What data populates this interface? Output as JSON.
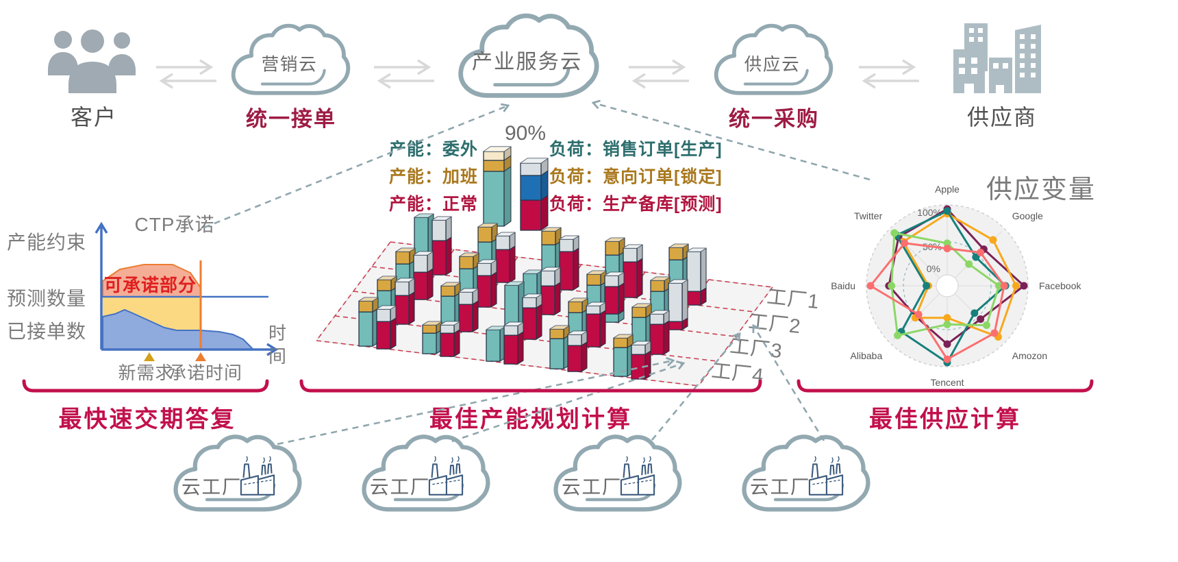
{
  "top_flow": {
    "customer_label": "客户",
    "marketing_cloud": "营销云",
    "marketing_caption": "统一接单",
    "service_cloud": "产业服务云",
    "supply_cloud": "供应云",
    "supply_caption": "统一采购",
    "supplier_label": "供应商"
  },
  "capacity_legend": {
    "percent": "90%",
    "capacity_items": [
      {
        "label": "产能：委外",
        "color": "#2E6E6E"
      },
      {
        "label": "产能：加班",
        "color": "#A9781E"
      },
      {
        "label": "产能：正常",
        "color": "#B01640"
      }
    ],
    "load_items": [
      {
        "label": "负荷：销售订单[生产]",
        "color": "#2E6E6E"
      },
      {
        "label": "负荷：意向订单[锁定]",
        "color": "#A9781E"
      },
      {
        "label": "负荷：生产备库[预测]",
        "color": "#B01640"
      }
    ]
  },
  "ctp_chart": {
    "title": "CTP承诺",
    "y_labels": [
      "产能约束",
      "预测数量",
      "已接单数"
    ],
    "area_label": "可承诺部分",
    "marker_labels": [
      "新需求",
      "承诺时间"
    ],
    "axis_label_chars": [
      "时",
      "间"
    ]
  },
  "factory_grid": {
    "row_labels": [
      "工厂1",
      "工厂2",
      "工厂3",
      "工厂4"
    ],
    "clusters": [
      {
        "cap": [
          80,
          0
        ],
        "load": [
          0,
          50,
          30
        ]
      },
      {
        "cap": [
          55,
          22
        ],
        "load": [
          0,
          48,
          20
        ]
      },
      {
        "cap": [
          62,
          20
        ],
        "load": [
          0,
          56,
          18
        ]
      },
      {
        "cap": [
          58,
          20
        ],
        "load": [
          0,
          52,
          20
        ]
      },
      {
        "cap": [
          62,
          18
        ],
        "load": [
          0,
          20,
          58
        ]
      },
      {
        "cap": [
          48,
          18
        ],
        "load": [
          0,
          40,
          25
        ]
      },
      {
        "cap": [
          52,
          18
        ],
        "load": [
          0,
          46,
          18
        ]
      },
      {
        "cap": [
          56,
          0
        ],
        "load": [
          0,
          42,
          22
        ]
      },
      {
        "cap": [
          50,
          16
        ],
        "load": [
          12,
          40,
          16
        ]
      },
      {
        "cap": [
          52,
          16
        ],
        "load": [
          0,
          12,
          56
        ]
      },
      {
        "cap": [
          45,
          16
        ],
        "load": [
          0,
          42,
          20
        ]
      },
      {
        "cap": [
          48,
          15
        ],
        "load": [
          0,
          40,
          18
        ]
      },
      {
        "cap": [
          75,
          0
        ],
        "load": [
          0,
          46,
          15
        ]
      },
      {
        "cap": [
          46,
          16
        ],
        "load": [
          0,
          48,
          12
        ]
      },
      {
        "cap": [
          50,
          15
        ],
        "load": [
          0,
          44,
          15
        ]
      },
      {
        "cap": [
          50,
          16
        ],
        "load": [
          0,
          40,
          18
        ]
      },
      {
        "cap": [
          30,
          12
        ],
        "load": [
          0,
          34,
          12
        ]
      },
      {
        "cap": [
          46,
          0
        ],
        "load": [
          0,
          42,
          14
        ]
      },
      {
        "cap": [
          44,
          14
        ],
        "load": [
          0,
          38,
          16
        ]
      },
      {
        "cap": [
          42,
          14
        ],
        "load": [
          0,
          36,
          14
        ]
      }
    ]
  },
  "radar": {
    "title": "供应变量",
    "axes": [
      "Apple",
      "Google",
      "Facebook",
      "Amozon",
      "Tencent",
      "Alibaba",
      "Baidu",
      "Twitter"
    ],
    "ring_labels": [
      "100%",
      "50%",
      "0%"
    ],
    "series": [
      {
        "color": "#7B2155",
        "values": [
          1.0,
          0.62,
          1.0,
          0.55,
          0.72,
          0.5,
          0.72,
          0.88
        ]
      },
      {
        "color": "#F7A81B",
        "values": [
          0.93,
          0.82,
          0.88,
          0.93,
          0.32,
          0.52,
          0.12,
          0.78
        ]
      },
      {
        "color": "#17807C",
        "values": [
          0.97,
          0.45,
          0.72,
          0.42,
          1.0,
          0.82,
          0.15,
          0.92
        ]
      },
      {
        "color": "#8BD766",
        "values": [
          0.48,
          0.3,
          0.62,
          0.68,
          0.42,
          0.9,
          0.68,
          0.97
        ]
      },
      {
        "color": "#FB6F6F",
        "values": [
          0.4,
          0.55,
          0.7,
          0.85,
          0.95,
          0.45,
          1.0,
          0.75
        ]
      }
    ]
  },
  "sections": [
    {
      "label": "最快速交期答复"
    },
    {
      "label": "最佳产能规划计算"
    },
    {
      "label": "最佳供应计算"
    }
  ],
  "cloud_factory_label": "云工厂",
  "colors": {
    "bar_teal": "#73BCB8",
    "bar_gold": "#D9A741",
    "bar_cream": "#F6E8C8",
    "bar_silver": "#D9DFE2",
    "bar_crimson": "#C00B45",
    "bar_blue": "#1F6FB5",
    "bar_outline": "#25364A",
    "grid_red": "#C94053",
    "plane_fill": "#F4F4F4",
    "dash_steel": "#8FA6AE",
    "section_red": "#C2104C",
    "caption_red": "#9E1C44",
    "axis_blue": "#4472C4",
    "line_orange": "#ED7D31",
    "area_red": "#F5AE96",
    "area_yellow": "#FBD983",
    "area_blue": "#8FAADC",
    "marker_gold": "#D4A017",
    "alert_red": "#E02020",
    "steel": "#93A9B1"
  }
}
